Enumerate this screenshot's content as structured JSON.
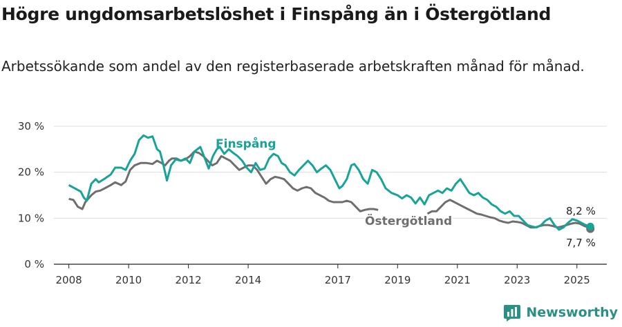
{
  "title": "Högre ungdomsarbetslöshet i Finspång än i Östergötland",
  "subtitle": "Arbetssökande som andel av den registerbaserade arbetskraften månad för månad.",
  "brand": {
    "name": "Newsworthy",
    "icon": "bar-chart-logo-icon",
    "color": "#2a8f86"
  },
  "chart_data": {
    "type": "line",
    "ylim": [
      0,
      30
    ],
    "yticks": [
      0,
      10,
      20,
      30
    ],
    "ytick_labels": [
      "0 %",
      "10 %",
      "20 %",
      "30 %"
    ],
    "xlim": [
      2007.5,
      2026.0
    ],
    "xticks": [
      2008,
      2010,
      2012,
      2014,
      2017,
      2019,
      2021,
      2023,
      2025
    ],
    "xtick_labels": [
      "2008",
      "2010",
      "2012",
      "2014",
      "2017",
      "2019",
      "2021",
      "2023",
      "2025"
    ],
    "grid": "horizontal",
    "series": [
      {
        "name": "Finspång",
        "color": "#17a398",
        "end_value_label": "8,2 %",
        "points": [
          [
            2008.0,
            17.2
          ],
          [
            2008.2,
            16.5
          ],
          [
            2008.4,
            15.8
          ],
          [
            2008.5,
            14.5
          ],
          [
            2008.6,
            13.8
          ],
          [
            2008.75,
            17.5
          ],
          [
            2008.9,
            18.5
          ],
          [
            2009.0,
            17.8
          ],
          [
            2009.2,
            18.6
          ],
          [
            2009.4,
            19.5
          ],
          [
            2009.55,
            21.0
          ],
          [
            2009.75,
            21.0
          ],
          [
            2009.9,
            20.5
          ],
          [
            2010.05,
            22.5
          ],
          [
            2010.2,
            24.0
          ],
          [
            2010.35,
            27.0
          ],
          [
            2010.5,
            28.0
          ],
          [
            2010.65,
            27.5
          ],
          [
            2010.8,
            27.8
          ],
          [
            2010.95,
            25.0
          ],
          [
            2011.05,
            24.5
          ],
          [
            2011.15,
            22.0
          ],
          [
            2011.28,
            18.2
          ],
          [
            2011.42,
            21.5
          ],
          [
            2011.58,
            22.8
          ],
          [
            2011.75,
            22.5
          ],
          [
            2011.9,
            23.0
          ],
          [
            2012.05,
            22.0
          ],
          [
            2012.2,
            24.5
          ],
          [
            2012.4,
            25.5
          ],
          [
            2012.55,
            23.0
          ],
          [
            2012.68,
            20.8
          ],
          [
            2012.82,
            23.5
          ],
          [
            2012.95,
            25.0
          ],
          [
            2013.05,
            25.5
          ],
          [
            2013.2,
            24.0
          ],
          [
            2013.35,
            25.0
          ],
          [
            2013.5,
            24.2
          ],
          [
            2013.65,
            23.5
          ],
          [
            2013.8,
            22.5
          ],
          [
            2013.95,
            21.0
          ],
          [
            2014.1,
            20.0
          ],
          [
            2014.25,
            22.0
          ],
          [
            2014.4,
            20.5
          ],
          [
            2014.55,
            20.8
          ],
          [
            2014.7,
            23.0
          ],
          [
            2014.85,
            24.0
          ],
          [
            2015.0,
            23.5
          ],
          [
            2015.12,
            22.0
          ],
          [
            2015.25,
            21.5
          ],
          [
            2015.4,
            20.0
          ],
          [
            2015.55,
            19.3
          ],
          [
            2015.7,
            20.5
          ],
          [
            2015.85,
            21.5
          ],
          [
            2016.0,
            22.5
          ],
          [
            2016.15,
            21.5
          ],
          [
            2016.3,
            20.0
          ],
          [
            2016.45,
            20.8
          ],
          [
            2016.6,
            21.5
          ],
          [
            2016.75,
            20.5
          ],
          [
            2016.9,
            18.5
          ],
          [
            2017.05,
            16.5
          ],
          [
            2017.15,
            17.0
          ],
          [
            2017.3,
            18.5
          ],
          [
            2017.45,
            21.5
          ],
          [
            2017.55,
            21.8
          ],
          [
            2017.7,
            20.5
          ],
          [
            2017.85,
            18.5
          ],
          [
            2018.0,
            17.5
          ],
          [
            2018.15,
            20.5
          ],
          [
            2018.3,
            20.0
          ],
          [
            2018.45,
            18.5
          ],
          [
            2018.6,
            16.5
          ],
          [
            2018.8,
            15.5
          ],
          [
            2019.0,
            15.0
          ],
          [
            2019.15,
            14.3
          ],
          [
            2019.3,
            15.0
          ],
          [
            2019.45,
            14.5
          ],
          [
            2019.6,
            13.2
          ],
          [
            2019.75,
            14.5
          ],
          [
            2019.9,
            13.0
          ],
          [
            2020.05,
            15.0
          ],
          [
            2020.2,
            15.5
          ],
          [
            2020.35,
            16.0
          ],
          [
            2020.5,
            15.5
          ],
          [
            2020.65,
            16.5
          ],
          [
            2020.8,
            16.0
          ],
          [
            2020.95,
            17.5
          ],
          [
            2021.1,
            18.5
          ],
          [
            2021.25,
            17.0
          ],
          [
            2021.4,
            15.5
          ],
          [
            2021.55,
            15.0
          ],
          [
            2021.7,
            15.5
          ],
          [
            2021.85,
            14.5
          ],
          [
            2022.0,
            14.0
          ],
          [
            2022.15,
            13.0
          ],
          [
            2022.3,
            12.5
          ],
          [
            2022.45,
            11.5
          ],
          [
            2022.6,
            11.0
          ],
          [
            2022.75,
            11.5
          ],
          [
            2022.9,
            10.5
          ],
          [
            2023.05,
            10.5
          ],
          [
            2023.2,
            9.5
          ],
          [
            2023.35,
            8.5
          ],
          [
            2023.5,
            8.2
          ],
          [
            2023.65,
            8.0
          ],
          [
            2023.8,
            8.5
          ],
          [
            2023.95,
            9.5
          ],
          [
            2024.1,
            10.0
          ],
          [
            2024.25,
            8.5
          ],
          [
            2024.4,
            7.5
          ],
          [
            2024.55,
            8.0
          ],
          [
            2024.7,
            9.0
          ],
          [
            2024.85,
            9.8
          ],
          [
            2025.0,
            9.5
          ],
          [
            2025.15,
            9.0
          ],
          [
            2025.3,
            8.5
          ],
          [
            2025.45,
            8.2
          ]
        ]
      },
      {
        "name": "Östergötland",
        "color": "#6e6e6e",
        "end_value_label": "7,7 %",
        "points": [
          [
            2008.0,
            14.2
          ],
          [
            2008.15,
            14.0
          ],
          [
            2008.3,
            12.5
          ],
          [
            2008.45,
            12.0
          ],
          [
            2008.55,
            13.5
          ],
          [
            2008.75,
            15.0
          ],
          [
            2008.9,
            15.8
          ],
          [
            2009.05,
            16.0
          ],
          [
            2009.2,
            16.5
          ],
          [
            2009.4,
            17.2
          ],
          [
            2009.55,
            17.8
          ],
          [
            2009.75,
            17.2
          ],
          [
            2009.9,
            18.0
          ],
          [
            2010.05,
            20.5
          ],
          [
            2010.2,
            21.5
          ],
          [
            2010.4,
            22.0
          ],
          [
            2010.6,
            22.0
          ],
          [
            2010.8,
            21.8
          ],
          [
            2010.95,
            22.5
          ],
          [
            2011.1,
            22.0
          ],
          [
            2011.22,
            21.5
          ],
          [
            2011.35,
            22.5
          ],
          [
            2011.45,
            23.0
          ],
          [
            2011.6,
            23.0
          ],
          [
            2011.75,
            22.5
          ],
          [
            2011.9,
            22.8
          ],
          [
            2012.05,
            23.5
          ],
          [
            2012.2,
            24.5
          ],
          [
            2012.35,
            24.2
          ],
          [
            2012.5,
            23.5
          ],
          [
            2012.65,
            22.5
          ],
          [
            2012.8,
            21.5
          ],
          [
            2012.95,
            22.0
          ],
          [
            2013.1,
            23.5
          ],
          [
            2013.25,
            23.0
          ],
          [
            2013.4,
            22.5
          ],
          [
            2013.55,
            21.5
          ],
          [
            2013.7,
            20.5
          ],
          [
            2013.85,
            21.0
          ],
          [
            2014.0,
            21.5
          ],
          [
            2014.15,
            21.5
          ],
          [
            2014.3,
            20.5
          ],
          [
            2014.45,
            19.0
          ],
          [
            2014.6,
            17.5
          ],
          [
            2014.75,
            18.5
          ],
          [
            2014.9,
            19.0
          ],
          [
            2015.05,
            18.8
          ],
          [
            2015.2,
            18.5
          ],
          [
            2015.35,
            17.5
          ],
          [
            2015.5,
            16.5
          ],
          [
            2015.65,
            16.0
          ],
          [
            2015.8,
            16.5
          ],
          [
            2015.95,
            16.8
          ],
          [
            2016.1,
            16.5
          ],
          [
            2016.25,
            15.5
          ],
          [
            2016.4,
            15.0
          ],
          [
            2016.55,
            14.5
          ],
          [
            2016.7,
            13.8
          ],
          [
            2016.85,
            13.5
          ],
          [
            2017.0,
            13.5
          ],
          [
            2017.15,
            13.5
          ],
          [
            2017.3,
            13.8
          ],
          [
            2017.45,
            13.5
          ],
          [
            2017.6,
            12.5
          ],
          [
            2017.75,
            11.5
          ],
          [
            2017.9,
            11.8
          ],
          [
            2018.05,
            12.0
          ],
          [
            2018.2,
            12.0
          ],
          [
            2018.35,
            11.8
          ]
        ],
        "points_late": [
          [
            2020.0,
            11.0
          ],
          [
            2020.15,
            11.5
          ],
          [
            2020.3,
            11.5
          ],
          [
            2020.45,
            12.5
          ],
          [
            2020.6,
            13.5
          ],
          [
            2020.75,
            14.0
          ],
          [
            2020.9,
            13.5
          ],
          [
            2021.05,
            13.0
          ],
          [
            2021.2,
            12.5
          ],
          [
            2021.35,
            12.0
          ],
          [
            2021.5,
            11.5
          ],
          [
            2021.65,
            11.0
          ],
          [
            2021.8,
            10.8
          ],
          [
            2021.95,
            10.5
          ],
          [
            2022.1,
            10.2
          ],
          [
            2022.25,
            10.0
          ],
          [
            2022.4,
            9.5
          ],
          [
            2022.55,
            9.2
          ],
          [
            2022.7,
            9.0
          ],
          [
            2022.85,
            9.3
          ],
          [
            2023.0,
            9.2
          ],
          [
            2023.15,
            9.0
          ],
          [
            2023.3,
            8.5
          ],
          [
            2023.45,
            8.0
          ],
          [
            2023.6,
            8.0
          ],
          [
            2023.75,
            8.3
          ],
          [
            2023.9,
            8.5
          ],
          [
            2024.05,
            8.5
          ],
          [
            2024.2,
            8.3
          ],
          [
            2024.35,
            8.0
          ],
          [
            2024.5,
            8.2
          ],
          [
            2024.65,
            8.5
          ],
          [
            2024.8,
            8.8
          ],
          [
            2024.95,
            9.0
          ],
          [
            2025.1,
            8.8
          ],
          [
            2025.25,
            8.3
          ],
          [
            2025.4,
            8.0
          ],
          [
            2025.45,
            7.7
          ]
        ]
      }
    ]
  }
}
